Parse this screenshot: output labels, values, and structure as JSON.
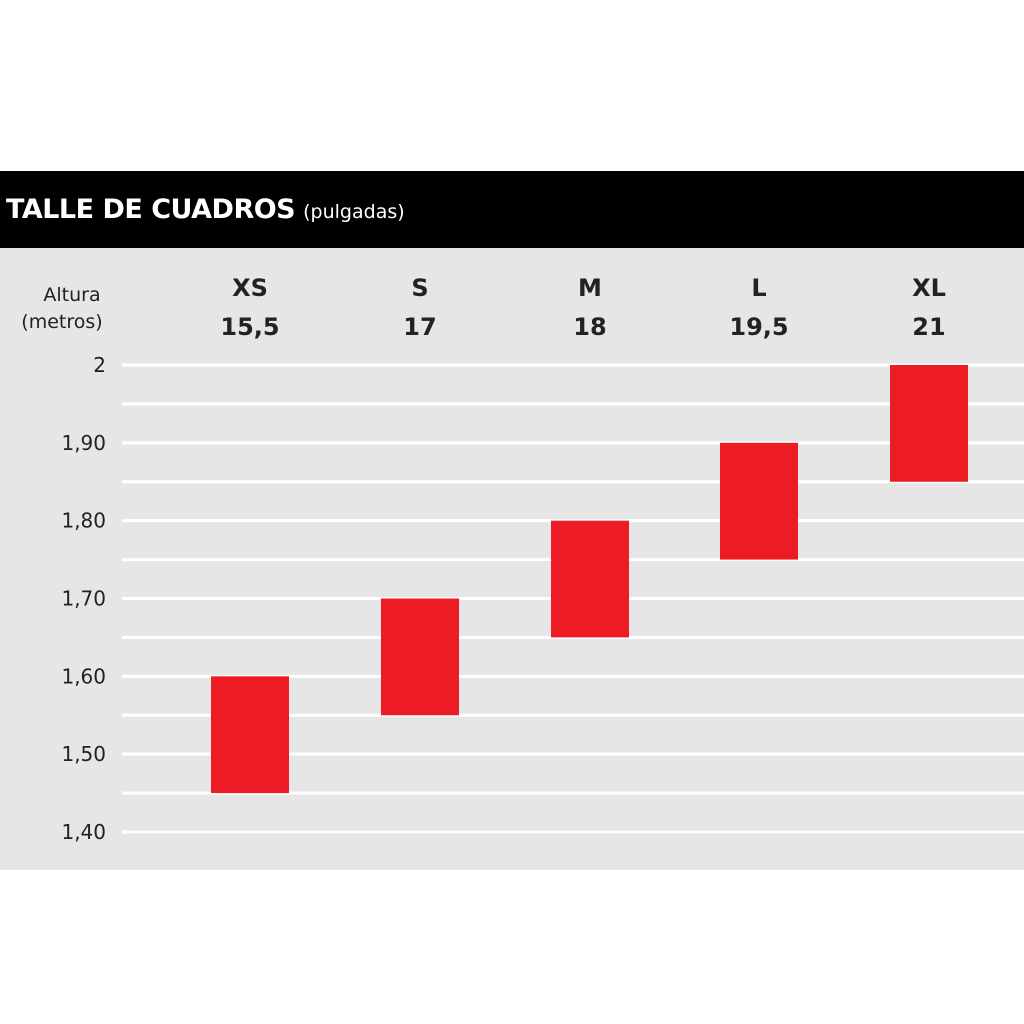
{
  "title": "TALLE DE CUADROS",
  "subtitle": "(pulgadas)",
  "chart_data": {
    "type": "bar",
    "title": "TALLE DE CUADROS (pulgadas)",
    "ylabel_line1": "Altura",
    "ylabel_line2": "(metros)",
    "ylim": [
      1.4,
      2.0
    ],
    "y_ticks": [
      {
        "value": 2.0,
        "label": "2"
      },
      {
        "value": 1.9,
        "label": "1,90"
      },
      {
        "value": 1.8,
        "label": "1,80"
      },
      {
        "value": 1.7,
        "label": "1,70"
      },
      {
        "value": 1.6,
        "label": "1,60"
      },
      {
        "value": 1.5,
        "label": "1,50"
      },
      {
        "value": 1.4,
        "label": "1,40"
      }
    ],
    "grid": true,
    "bar_color": "#ed1c24",
    "categories": [
      {
        "size": "XS",
        "inches": "15,5",
        "low": 1.45,
        "high": 1.6
      },
      {
        "size": "S",
        "inches": "17",
        "low": 1.55,
        "high": 1.7
      },
      {
        "size": "M",
        "inches": "18",
        "low": 1.65,
        "high": 1.8
      },
      {
        "size": "L",
        "inches": "19,5",
        "low": 1.75,
        "high": 1.9
      },
      {
        "size": "XL",
        "inches": "21",
        "low": 1.85,
        "high": 2.0
      }
    ]
  }
}
